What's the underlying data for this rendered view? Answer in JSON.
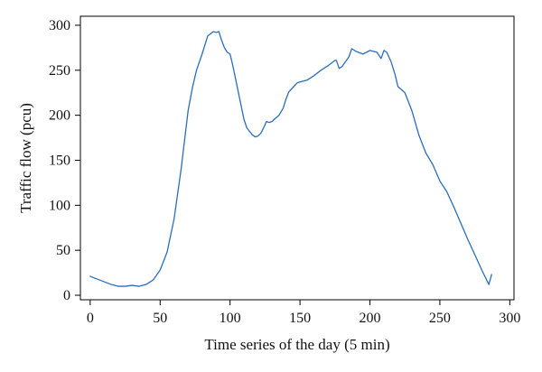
{
  "chart_data": {
    "type": "line",
    "xlabel": "Time series of the day (5 min)",
    "ylabel": "Traffic flow (pcu)",
    "xlim": [
      -7,
      303
    ],
    "ylim": [
      -5,
      310
    ],
    "x_ticks": [
      0,
      50,
      100,
      150,
      200,
      250,
      300
    ],
    "y_ticks": [
      0,
      50,
      100,
      150,
      200,
      250,
      300
    ],
    "grid": false,
    "colors": {
      "series": "#2a6ebb",
      "axes": "#000000"
    },
    "series": [
      {
        "x": [
          0,
          5,
          10,
          15,
          20,
          25,
          30,
          35,
          40,
          45,
          50,
          55,
          60,
          65,
          70,
          73,
          76,
          80,
          84,
          88,
          90,
          92,
          94,
          96,
          98,
          100,
          102,
          104,
          106,
          108,
          110,
          112,
          114,
          116,
          118,
          120,
          122,
          124,
          126,
          128,
          130,
          132,
          135,
          138,
          140,
          142,
          145,
          148,
          150,
          155,
          160,
          165,
          170,
          175,
          176,
          178,
          180,
          185,
          187,
          190,
          195,
          200,
          205,
          208,
          210,
          212,
          215,
          218,
          220,
          225,
          230,
          235,
          240,
          245,
          250,
          255,
          260,
          265,
          270,
          275,
          280,
          285,
          287
        ],
        "y": [
          21,
          18,
          15,
          12,
          10,
          10,
          11,
          10,
          12,
          17,
          28,
          48,
          85,
          140,
          205,
          230,
          250,
          268,
          288,
          293,
          292,
          293,
          283,
          275,
          270,
          268,
          255,
          240,
          225,
          210,
          195,
          186,
          182,
          178,
          176,
          177,
          180,
          186,
          193,
          192,
          193,
          196,
          200,
          208,
          218,
          226,
          231,
          236,
          237,
          239,
          244,
          250,
          255,
          261,
          261,
          252,
          254,
          265,
          274,
          271,
          268,
          272,
          270,
          263,
          272,
          270,
          260,
          245,
          232,
          225,
          205,
          178,
          158,
          145,
          127,
          115,
          98,
          80,
          62,
          45,
          28,
          12,
          23
        ]
      }
    ]
  }
}
